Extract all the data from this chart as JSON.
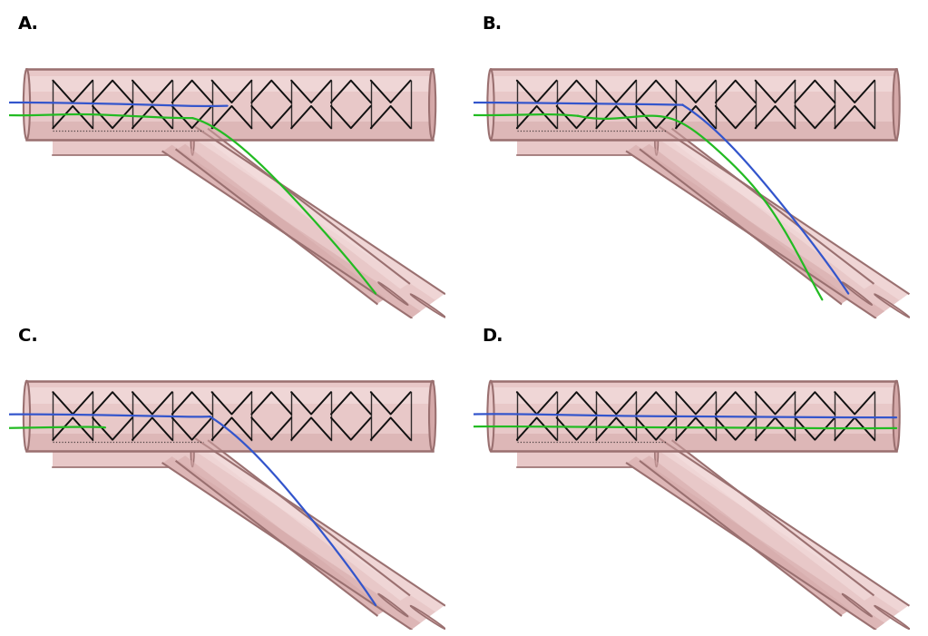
{
  "background_color": "#ffffff",
  "vessel_fill": "#e8c8c8",
  "vessel_mid": "#d4a8a8",
  "vessel_dark": "#9a7070",
  "vessel_light": "#f5e0e0",
  "stent_color": "#111111",
  "wire_blue": "#3355cc",
  "wire_green": "#22bb22",
  "label_fontsize": 14,
  "label_fontweight": "bold",
  "panel_labels": [
    "A.",
    "B.",
    "C.",
    "D."
  ],
  "fig_width": 10.23,
  "fig_height": 7.01,
  "fig_dpi": 100
}
